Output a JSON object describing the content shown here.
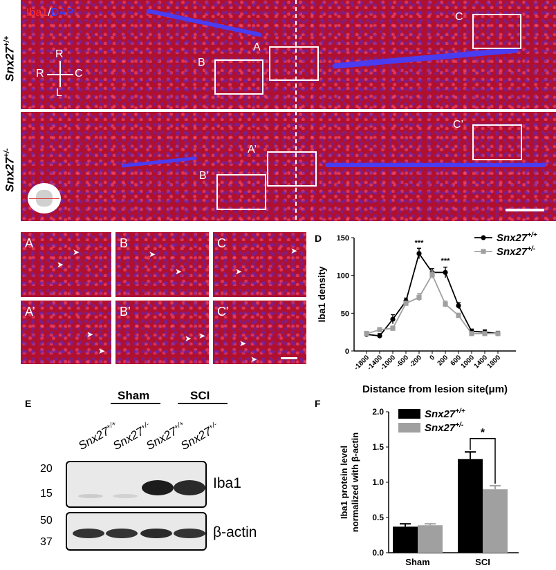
{
  "panel_letters": {
    "D": "D",
    "E": "E",
    "F": "F"
  },
  "micrograph": {
    "stain_iba1": "Iba1",
    "stain_sep": "/",
    "stain_dapi": "DAPI",
    "genotype_top": "Snx27",
    "genotype_top_sup": "+/+",
    "genotype_bottom": "Snx27",
    "genotype_bottom_sup": "+/-",
    "orientation": {
      "top": "R",
      "left": "R",
      "right": "C",
      "bottom": "L"
    },
    "boxes_top": [
      "A",
      "B",
      "C"
    ],
    "boxes_bottom": [
      "A’",
      "B’",
      "C’"
    ]
  },
  "tiles": {
    "row1": [
      "A",
      "B",
      "C"
    ],
    "row2": [
      "A’",
      "B’",
      "C’"
    ]
  },
  "colors": {
    "iba1": "#e0182e",
    "dapi": "#2a2ad0",
    "black": "#000000",
    "gray": "#a0a0a0"
  },
  "chart_d": {
    "type": "line",
    "ylabel": "Iba1 density",
    "xlabel": "Distance from lesion site(μm)",
    "ylim": [
      0,
      150
    ],
    "yticks": [
      0,
      50,
      100,
      150
    ],
    "x": [
      -1800,
      -1400,
      -1000,
      -600,
      -200,
      0,
      200,
      600,
      1000,
      1400,
      1800
    ],
    "series": [
      {
        "name": "Snx27",
        "sup": "+/+",
        "color": "#000000",
        "marker": "circle",
        "values": [
          22,
          20,
          42,
          66,
          129,
          104,
          104,
          60,
          26,
          25,
          23
        ],
        "err": [
          3,
          3,
          6,
          4,
          7,
          5,
          7,
          4,
          3,
          3,
          3
        ]
      },
      {
        "name": "Snx27",
        "sup": "+/-",
        "color": "#a0a0a0",
        "marker": "square",
        "values": [
          23,
          28,
          30,
          63,
          71,
          101,
          62,
          47,
          23,
          23,
          23
        ],
        "err": [
          3,
          3,
          3,
          3,
          5,
          5,
          4,
          3,
          2,
          2,
          2
        ]
      }
    ],
    "annotations": [
      "***",
      "***"
    ]
  },
  "blot_e": {
    "groups": [
      "Sham",
      "SCI"
    ],
    "lanes": [
      {
        "name": "Snx27",
        "sup": "+/+"
      },
      {
        "name": "Snx27",
        "sup": "+/-"
      },
      {
        "name": "Snx27",
        "sup": "+/+"
      },
      {
        "name": "Snx27",
        "sup": "+/-"
      }
    ],
    "markers_top": [
      "20",
      "15"
    ],
    "markers_bottom": [
      "50",
      "37"
    ],
    "label_top": "Iba1",
    "label_bottom": "β-actin"
  },
  "chart_f": {
    "type": "bar",
    "categories": [
      "Sham",
      "SCI"
    ],
    "ylabel_line1": "Iba1 protein level",
    "ylabel_line2": "normalized with β-actin",
    "ylim": [
      0,
      2.0
    ],
    "yticks": [
      "0.0",
      "0.5",
      "1.0",
      "1.5",
      "2.0"
    ],
    "series": [
      {
        "name": "Snx27",
        "sup": "+/+",
        "color": "#000000",
        "values": [
          0.37,
          1.33
        ],
        "err": [
          0.04,
          0.1
        ]
      },
      {
        "name": "Snx27",
        "sup": "+/-",
        "color": "#a0a0a0",
        "values": [
          0.39,
          0.9
        ],
        "err": [
          0.02,
          0.05
        ]
      }
    ],
    "annotation": "*"
  }
}
